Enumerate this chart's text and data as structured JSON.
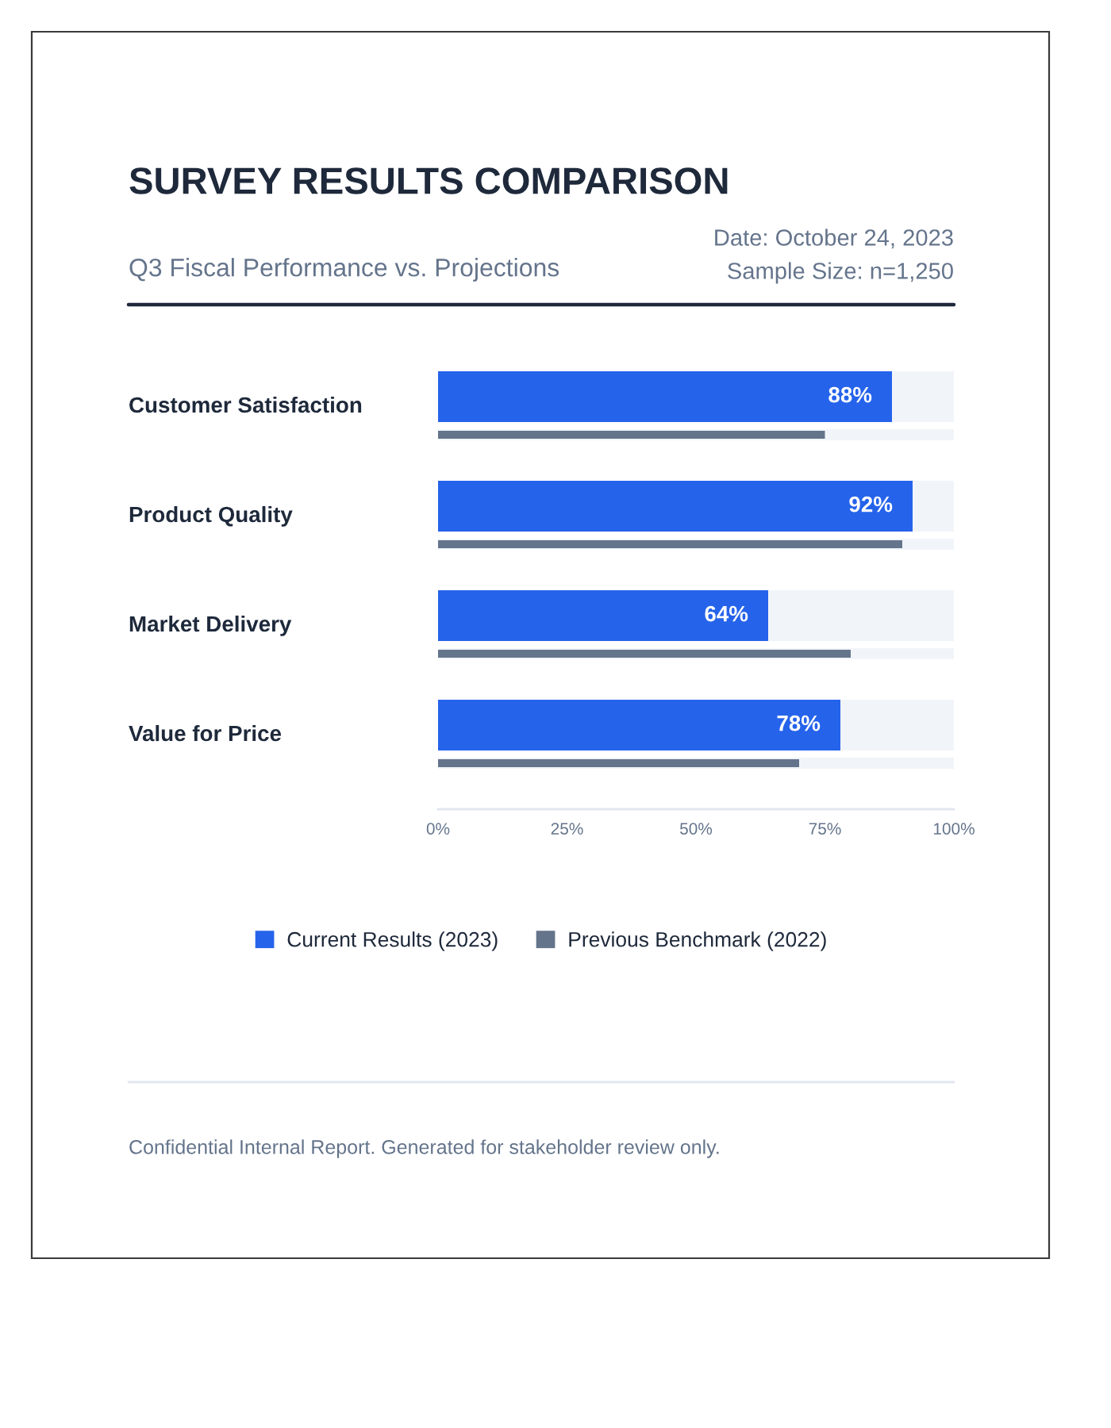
{
  "chart_data": {
    "type": "bar",
    "orientation": "horizontal",
    "title": "SURVEY RESULTS COMPARISON",
    "subtitle": "Q3 Fiscal Performance vs. Projections",
    "categories": [
      "Customer Satisfaction",
      "Product Quality",
      "Market Delivery",
      "Value for Price"
    ],
    "series": [
      {
        "name": "Current Results (2023)",
        "color": "#2563eb",
        "values": [
          88,
          92,
          64,
          78
        ],
        "value_labels": [
          "88%",
          "92%",
          "64%",
          "78%"
        ]
      },
      {
        "name": "Previous Benchmark (2022)",
        "color": "#64748b",
        "values": [
          75,
          90,
          80,
          70
        ]
      }
    ],
    "xlim": [
      0,
      100
    ],
    "xticks": [
      {
        "value": 0,
        "label": "0%"
      },
      {
        "value": 25,
        "label": "25%"
      },
      {
        "value": 50,
        "label": "50%"
      },
      {
        "value": 75,
        "label": "75%"
      },
      {
        "value": 100,
        "label": "100%"
      }
    ],
    "legend": "bottom",
    "annotations": [
      "Date: October 24, 2023",
      "Sample Size: n=1,250",
      "Confidential Internal Report. Generated for stakeholder review only."
    ]
  }
}
